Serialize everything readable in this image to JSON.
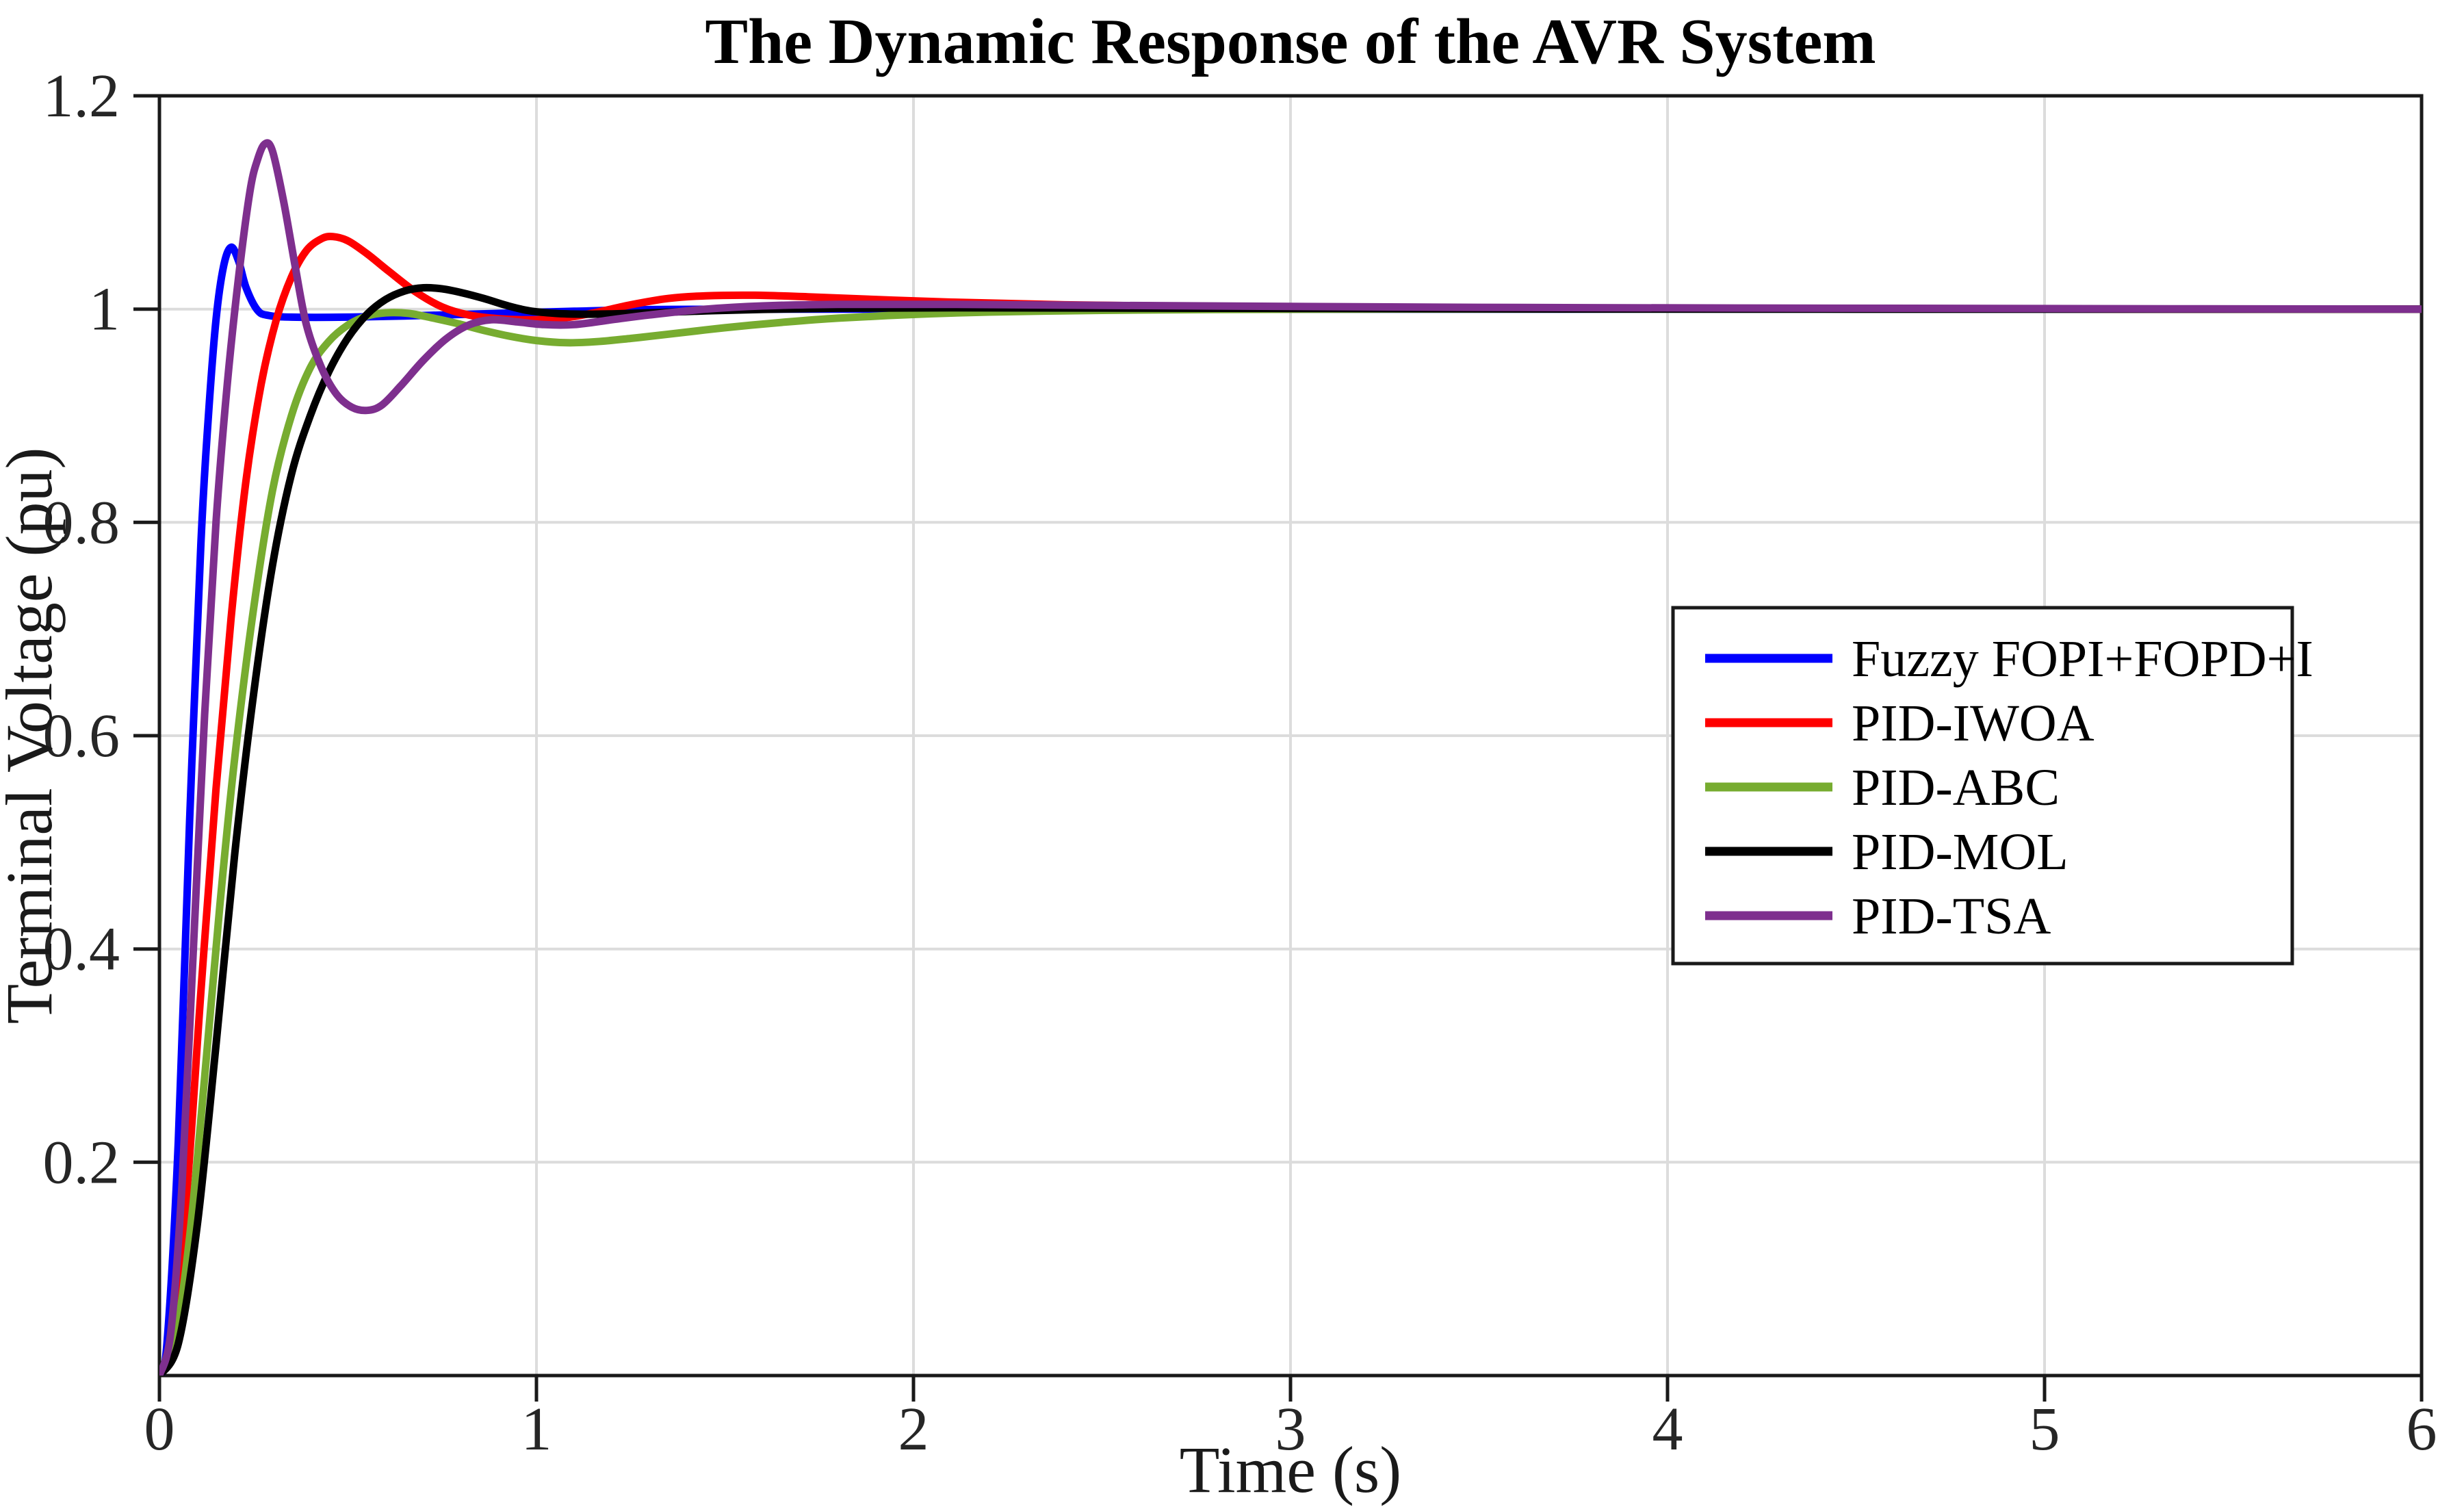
{
  "colors": {
    "background": "#ffffff",
    "axis": "#1a1a1a",
    "grid": "#dcdcdc",
    "tick_text": "#262626"
  },
  "legend": {
    "border_color": "#1a1a1a",
    "background": "#ffffff",
    "entries": [
      {
        "label": "Fuzzy FOPI+FOPD+I",
        "color": "#0000ff"
      },
      {
        "label": "PID-IWOA",
        "color": "#ff0000"
      },
      {
        "label": "PID-ABC",
        "color": "#77ac30"
      },
      {
        "label": "PID-MOL",
        "color": "#000000"
      },
      {
        "label": "PID-TSA",
        "color": "#7e2f8e"
      }
    ]
  },
  "chart_data": {
    "type": "line",
    "title": "The Dynamic Response of the AVR System",
    "xlabel": "Time (s)",
    "ylabel": "Terminal Voltage (pu)",
    "xlim": [
      0,
      6
    ],
    "ylim": [
      0,
      1.2
    ],
    "xticks": [
      0,
      1,
      2,
      3,
      4,
      5,
      6
    ],
    "xtick_labels": [
      "0",
      "1",
      "2",
      "3",
      "4",
      "5",
      "6"
    ],
    "yticks": [
      0.2,
      0.4,
      0.6,
      0.8,
      1,
      1.2
    ],
    "ytick_labels": [
      "0.2",
      "0.4",
      "0.6",
      "0.8",
      "1",
      "1.2"
    ],
    "grid": true,
    "legend_position": "middle-right",
    "series": [
      {
        "name": "Fuzzy FOPI+FOPD+I",
        "color": "#0000ff",
        "peak": {
          "time": 0.19,
          "value": 1.058
        },
        "settling_value": 1.0,
        "points": [
          [
            0,
            0
          ],
          [
            0.02,
            0.03
          ],
          [
            0.05,
            0.22
          ],
          [
            0.08,
            0.52
          ],
          [
            0.11,
            0.78
          ],
          [
            0.13,
            0.9
          ],
          [
            0.15,
            0.99
          ],
          [
            0.17,
            1.04
          ],
          [
            0.19,
            1.058
          ],
          [
            0.21,
            1.045
          ],
          [
            0.23,
            1.02
          ],
          [
            0.26,
            0.999
          ],
          [
            0.29,
            0.994
          ],
          [
            0.35,
            0.9925
          ],
          [
            0.5,
            0.9925
          ],
          [
            0.65,
            0.9935
          ],
          [
            0.8,
            0.995
          ],
          [
            0.95,
            0.9965
          ],
          [
            1.1,
            0.998
          ],
          [
            1.3,
            0.9995
          ],
          [
            1.6,
            1.0
          ],
          [
            2.5,
            1.0
          ],
          [
            4.0,
            1.0
          ],
          [
            6.0,
            1.0
          ]
        ]
      },
      {
        "name": "PID-IWOA",
        "color": "#ff0000",
        "peak": {
          "time": 0.46,
          "value": 1.068
        },
        "settling_value": 1.0,
        "points": [
          [
            0,
            0
          ],
          [
            0.03,
            0.03
          ],
          [
            0.07,
            0.16
          ],
          [
            0.11,
            0.36
          ],
          [
            0.15,
            0.55
          ],
          [
            0.19,
            0.71
          ],
          [
            0.23,
            0.84
          ],
          [
            0.27,
            0.93
          ],
          [
            0.31,
            0.99
          ],
          [
            0.35,
            1.03
          ],
          [
            0.39,
            1.055
          ],
          [
            0.43,
            1.066
          ],
          [
            0.46,
            1.068
          ],
          [
            0.5,
            1.064
          ],
          [
            0.55,
            1.052
          ],
          [
            0.61,
            1.035
          ],
          [
            0.68,
            1.016
          ],
          [
            0.75,
            1.002
          ],
          [
            0.82,
            0.9945
          ],
          [
            0.9,
            0.991
          ],
          [
            1.0,
            0.99
          ],
          [
            1.08,
            0.992
          ],
          [
            1.16,
            0.997
          ],
          [
            1.25,
            1.004
          ],
          [
            1.35,
            1.01
          ],
          [
            1.45,
            1.0125
          ],
          [
            1.58,
            1.013
          ],
          [
            1.72,
            1.0115
          ],
          [
            1.9,
            1.009
          ],
          [
            2.1,
            1.0065
          ],
          [
            2.4,
            1.004
          ],
          [
            2.8,
            1.0025
          ],
          [
            3.2,
            1.0015
          ],
          [
            3.8,
            1.001
          ],
          [
            4.5,
            1.0005
          ],
          [
            5.2,
            1.0
          ],
          [
            6.0,
            1.0
          ]
        ]
      },
      {
        "name": "PID-ABC",
        "color": "#77ac30",
        "peak": {
          "time": 0.6,
          "value": 0.9965
        },
        "settling_value": 1.0,
        "points": [
          [
            0,
            0
          ],
          [
            0.04,
            0.03
          ],
          [
            0.08,
            0.13
          ],
          [
            0.12,
            0.28
          ],
          [
            0.16,
            0.44
          ],
          [
            0.2,
            0.58
          ],
          [
            0.25,
            0.72
          ],
          [
            0.3,
            0.83
          ],
          [
            0.35,
            0.9
          ],
          [
            0.4,
            0.945
          ],
          [
            0.45,
            0.97
          ],
          [
            0.5,
            0.985
          ],
          [
            0.55,
            0.9935
          ],
          [
            0.6,
            0.9965
          ],
          [
            0.66,
            0.996
          ],
          [
            0.72,
            0.992
          ],
          [
            0.79,
            0.9865
          ],
          [
            0.86,
            0.98
          ],
          [
            0.93,
            0.9745
          ],
          [
            1.0,
            0.9705
          ],
          [
            1.08,
            0.9685
          ],
          [
            1.16,
            0.9695
          ],
          [
            1.25,
            0.9725
          ],
          [
            1.35,
            0.9765
          ],
          [
            1.5,
            0.9825
          ],
          [
            1.65,
            0.9875
          ],
          [
            1.8,
            0.9915
          ],
          [
            2.0,
            0.995
          ],
          [
            2.2,
            0.9972
          ],
          [
            2.5,
            0.9988
          ],
          [
            2.8,
            0.9996
          ],
          [
            3.2,
            1.0
          ],
          [
            4.0,
            1.0
          ],
          [
            6.0,
            1.0
          ]
        ]
      },
      {
        "name": "PID-MOL",
        "color": "#000000",
        "peak": {
          "time": 0.7,
          "value": 1.02
        },
        "settling_value": 1.0,
        "points": [
          [
            0,
            0
          ],
          [
            0.05,
            0.03
          ],
          [
            0.1,
            0.14
          ],
          [
            0.15,
            0.31
          ],
          [
            0.2,
            0.49
          ],
          [
            0.25,
            0.64
          ],
          [
            0.3,
            0.76
          ],
          [
            0.35,
            0.845
          ],
          [
            0.4,
            0.9
          ],
          [
            0.45,
            0.942
          ],
          [
            0.5,
            0.973
          ],
          [
            0.55,
            0.995
          ],
          [
            0.6,
            1.009
          ],
          [
            0.65,
            1.017
          ],
          [
            0.7,
            1.02
          ],
          [
            0.75,
            1.019
          ],
          [
            0.8,
            1.0155
          ],
          [
            0.86,
            1.01
          ],
          [
            0.92,
            1.0035
          ],
          [
            0.98,
            0.9985
          ],
          [
            1.05,
            0.996
          ],
          [
            1.12,
            0.9952
          ],
          [
            1.2,
            0.9955
          ],
          [
            1.32,
            0.9968
          ],
          [
            1.45,
            0.9983
          ],
          [
            1.6,
            0.9997
          ],
          [
            1.8,
            1.0008
          ],
          [
            2.1,
            1.0012
          ],
          [
            2.5,
            1.001
          ],
          [
            3.0,
            1.0006
          ],
          [
            3.6,
            1.0002
          ],
          [
            4.5,
            1.0
          ],
          [
            6.0,
            1.0
          ]
        ]
      },
      {
        "name": "PID-TSA",
        "color": "#7e2f8e",
        "peak": {
          "time": 0.28,
          "value": 1.155
        },
        "settling_value": 1.0,
        "points": [
          [
            0,
            0
          ],
          [
            0.03,
            0.04
          ],
          [
            0.06,
            0.18
          ],
          [
            0.09,
            0.4
          ],
          [
            0.12,
            0.62
          ],
          [
            0.15,
            0.8
          ],
          [
            0.18,
            0.93
          ],
          [
            0.21,
            1.03
          ],
          [
            0.24,
            1.11
          ],
          [
            0.26,
            1.14
          ],
          [
            0.28,
            1.155
          ],
          [
            0.3,
            1.148
          ],
          [
            0.33,
            1.1
          ],
          [
            0.36,
            1.04
          ],
          [
            0.39,
            0.985
          ],
          [
            0.43,
            0.945
          ],
          [
            0.47,
            0.92
          ],
          [
            0.51,
            0.908
          ],
          [
            0.55,
            0.905
          ],
          [
            0.59,
            0.91
          ],
          [
            0.64,
            0.928
          ],
          [
            0.7,
            0.952
          ],
          [
            0.76,
            0.972
          ],
          [
            0.82,
            0.985
          ],
          [
            0.88,
            0.99
          ],
          [
            0.95,
            0.988
          ],
          [
            1.02,
            0.9855
          ],
          [
            1.1,
            0.9855
          ],
          [
            1.2,
            0.99
          ],
          [
            1.3,
            0.9945
          ],
          [
            1.45,
            1.0
          ],
          [
            1.6,
            1.003
          ],
          [
            1.8,
            1.0045
          ],
          [
            2.1,
            1.0045
          ],
          [
            2.5,
            1.0035
          ],
          [
            3.0,
            1.0025
          ],
          [
            3.6,
            1.0015
          ],
          [
            4.2,
            1.001
          ],
          [
            5.0,
            1.0005
          ],
          [
            6.0,
            1.0
          ]
        ]
      }
    ]
  }
}
